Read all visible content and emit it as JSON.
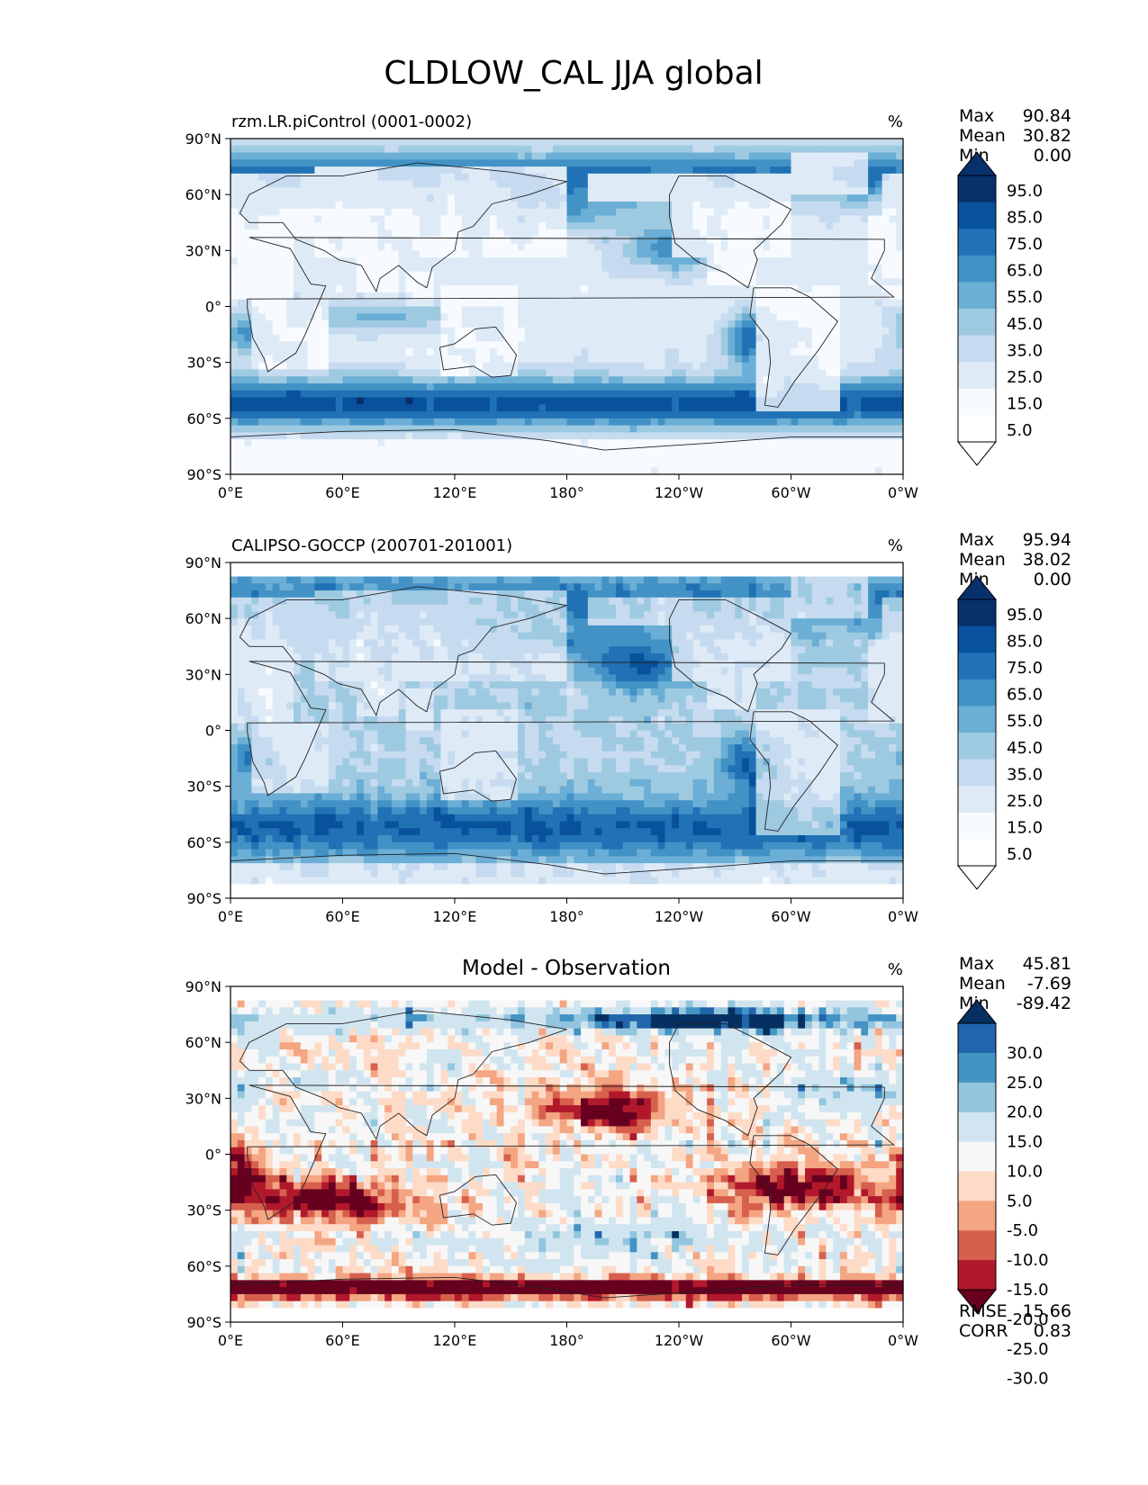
{
  "figure_title": "CLDLOW_CAL JJA global",
  "colors": {
    "seq": [
      "#f7fbff",
      "#deebf7",
      "#c6dbef",
      "#9ecae1",
      "#6baed6",
      "#4292c6",
      "#2171b5",
      "#08519c",
      "#08306b"
    ],
    "div": [
      "#67001f",
      "#b2182b",
      "#d6604d",
      "#f4a582",
      "#fddbc7",
      "#f7f7f7",
      "#d1e5f0",
      "#92c5de",
      "#4393c3",
      "#2166ac",
      "#053061"
    ],
    "land_line": "#222222"
  },
  "chart_data": [
    {
      "type": "heatmap",
      "panel": "model",
      "title_left": "rzm.LR.piControl (0001-0002)",
      "title_center": "",
      "units": "%",
      "xlabel_ticks": [
        "0°E",
        "60°E",
        "120°E",
        "180°",
        "120°W",
        "60°W",
        "0°W"
      ],
      "ylabel_ticks": [
        "90°N",
        "60°N",
        "30°N",
        "0°",
        "30°S",
        "60°S",
        "90°S"
      ],
      "xlim": [
        0,
        360
      ],
      "ylim": [
        -90,
        90
      ],
      "stats": {
        "labels": [
          "Max",
          "Mean",
          "Min"
        ],
        "values": [
          "90.84",
          "30.82",
          "0.00"
        ]
      },
      "colorbar": {
        "ticks": [
          "95.0",
          "85.0",
          "75.0",
          "65.0",
          "55.0",
          "45.0",
          "35.0",
          "25.0",
          "15.0",
          "5.0"
        ],
        "extend": "both",
        "scheme": "seq"
      },
      "data_hint": {
        "Max": 90.84,
        "Mean": 30.82,
        "Min": 0.0
      }
    },
    {
      "type": "heatmap",
      "panel": "observation",
      "title_left": "CALIPSO-GOCCP (200701-201001)",
      "title_center": "",
      "units": "%",
      "xlabel_ticks": [
        "0°E",
        "60°E",
        "120°E",
        "180°",
        "120°W",
        "60°W",
        "0°W"
      ],
      "ylabel_ticks": [
        "90°N",
        "60°N",
        "30°N",
        "0°",
        "30°S",
        "60°S",
        "90°S"
      ],
      "xlim": [
        0,
        360
      ],
      "ylim": [
        -90,
        90
      ],
      "stats": {
        "labels": [
          "Max",
          "Mean",
          "Min"
        ],
        "values": [
          "95.94",
          "38.02",
          "0.00"
        ]
      },
      "colorbar": {
        "ticks": [
          "95.0",
          "85.0",
          "75.0",
          "65.0",
          "55.0",
          "45.0",
          "35.0",
          "25.0",
          "15.0",
          "5.0"
        ],
        "extend": "both",
        "scheme": "seq"
      },
      "data_hint": {
        "Max": 95.94,
        "Mean": 38.02,
        "Min": 0.0
      }
    },
    {
      "type": "heatmap",
      "panel": "difference",
      "title_left": "",
      "title_center": "Model - Observation",
      "units": "%",
      "xlabel_ticks": [
        "0°E",
        "60°E",
        "120°E",
        "180°",
        "120°W",
        "60°W",
        "0°W"
      ],
      "ylabel_ticks": [
        "90°N",
        "60°N",
        "30°N",
        "0°",
        "30°S",
        "60°S",
        "90°S"
      ],
      "xlim": [
        0,
        360
      ],
      "ylim": [
        -90,
        90
      ],
      "stats": {
        "labels": [
          "Max",
          "Mean",
          "Min"
        ],
        "values": [
          "45.81",
          "-7.69",
          "-89.42"
        ]
      },
      "colorbar": {
        "ticks": [
          "30.0",
          "25.0",
          "20.0",
          "15.0",
          "10.0",
          "5.0",
          "-5.0",
          "-10.0",
          "-15.0",
          "-20.0",
          "-25.0",
          "-30.0"
        ],
        "extend": "both",
        "scheme": "div"
      },
      "extra_stats": {
        "labels": [
          "RMSE",
          "CORR"
        ],
        "values": [
          "15.66",
          "0.83"
        ]
      },
      "data_hint": {
        "Max": 45.81,
        "Mean": -7.69,
        "Min": -89.42,
        "RMSE": 15.66,
        "CORR": 0.83
      }
    }
  ]
}
